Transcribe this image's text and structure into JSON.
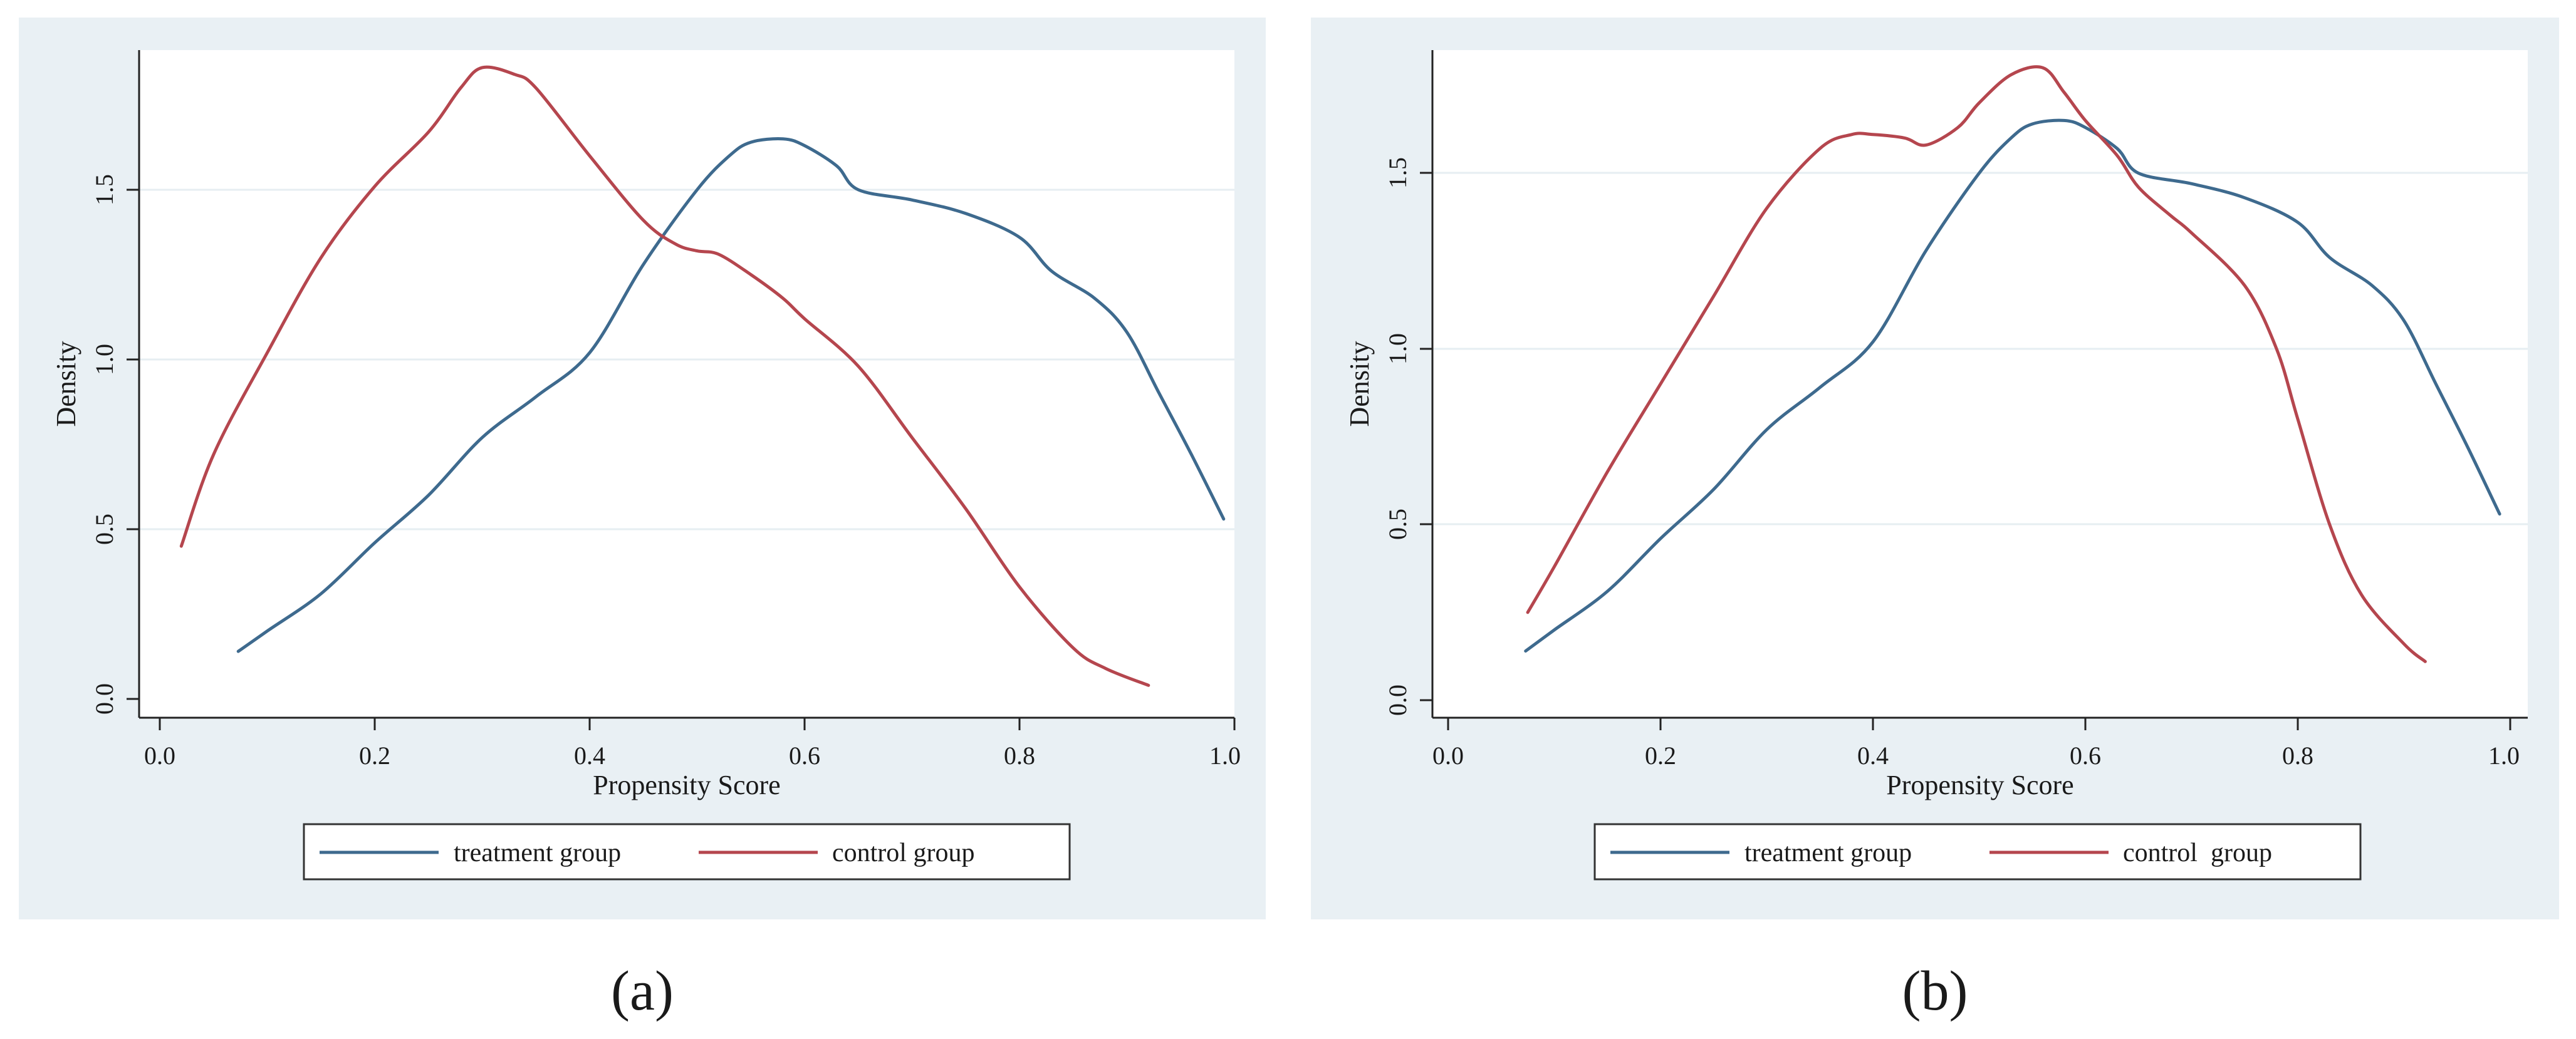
{
  "chart_data": [
    {
      "type": "line",
      "panel_label": "(a)",
      "xlabel": "Propensity Score",
      "ylabel": "Density",
      "xlim": [
        0,
        1
      ],
      "ylim": [
        0,
        1.85
      ],
      "x_ticks": [
        0,
        0.2,
        0.4,
        0.6,
        0.8,
        1
      ],
      "x_tick_labels": [
        "0.0",
        "0.2",
        "0.4",
        "0.6",
        "0.8",
        "1.0"
      ],
      "y_ticks": [
        0,
        0.5,
        1,
        1.5
      ],
      "y_tick_labels": [
        "0.0",
        "0.5",
        "1.0",
        "1.5"
      ],
      "grid": true,
      "legend_position": "bottom",
      "series": [
        {
          "name": "treatment group",
          "color": "#3e6a8e",
          "x": [
            0.073,
            0.1,
            0.15,
            0.2,
            0.25,
            0.3,
            0.35,
            0.4,
            0.45,
            0.5,
            0.53,
            0.55,
            0.58,
            0.6,
            0.63,
            0.65,
            0.7,
            0.75,
            0.8,
            0.83,
            0.87,
            0.9,
            0.93,
            0.96,
            0.99
          ],
          "values": [
            0.14,
            0.2,
            0.31,
            0.46,
            0.6,
            0.77,
            0.89,
            1.02,
            1.28,
            1.5,
            1.6,
            1.64,
            1.65,
            1.63,
            1.57,
            1.5,
            1.47,
            1.43,
            1.36,
            1.26,
            1.18,
            1.08,
            0.9,
            0.72,
            0.53
          ]
        },
        {
          "name": "control group",
          "color": "#b5464e",
          "x": [
            0.02,
            0.05,
            0.1,
            0.15,
            0.2,
            0.25,
            0.28,
            0.3,
            0.33,
            0.35,
            0.4,
            0.45,
            0.48,
            0.5,
            0.52,
            0.55,
            0.58,
            0.6,
            0.65,
            0.7,
            0.75,
            0.8,
            0.85,
            0.88,
            0.92
          ],
          "values": [
            0.45,
            0.72,
            1.02,
            1.3,
            1.51,
            1.67,
            1.8,
            1.86,
            1.84,
            1.8,
            1.6,
            1.41,
            1.34,
            1.32,
            1.31,
            1.25,
            1.18,
            1.12,
            0.98,
            0.77,
            0.56,
            0.33,
            0.15,
            0.09,
            0.04
          ]
        }
      ]
    },
    {
      "type": "line",
      "panel_label": "(b)",
      "xlabel": "Propensity Score",
      "ylabel": "Density",
      "xlim": [
        0,
        1
      ],
      "ylim": [
        0,
        1.85
      ],
      "x_ticks": [
        0,
        0.2,
        0.4,
        0.6,
        0.8,
        1
      ],
      "x_tick_labels": [
        "0.0",
        "0.2",
        "0.4",
        "0.6",
        "0.8",
        "1.0"
      ],
      "y_ticks": [
        0,
        0.5,
        1,
        1.5
      ],
      "y_tick_labels": [
        "0.0",
        "0.5",
        "1.0",
        "1.5"
      ],
      "grid": true,
      "legend_position": "bottom",
      "series": [
        {
          "name": "treatment group",
          "color": "#3e6a8e",
          "x": [
            0.073,
            0.1,
            0.15,
            0.2,
            0.25,
            0.3,
            0.35,
            0.4,
            0.45,
            0.5,
            0.53,
            0.55,
            0.58,
            0.6,
            0.63,
            0.65,
            0.7,
            0.75,
            0.8,
            0.83,
            0.87,
            0.9,
            0.93,
            0.96,
            0.99
          ],
          "values": [
            0.14,
            0.2,
            0.31,
            0.46,
            0.6,
            0.77,
            0.89,
            1.02,
            1.28,
            1.5,
            1.6,
            1.64,
            1.65,
            1.63,
            1.57,
            1.5,
            1.47,
            1.43,
            1.36,
            1.26,
            1.18,
            1.08,
            0.9,
            0.72,
            0.53
          ]
        },
        {
          "name": "control  group",
          "color": "#b5464e",
          "x": [
            0.075,
            0.1,
            0.15,
            0.2,
            0.25,
            0.3,
            0.35,
            0.38,
            0.4,
            0.43,
            0.45,
            0.48,
            0.5,
            0.53,
            0.56,
            0.58,
            0.6,
            0.63,
            0.65,
            0.68,
            0.7,
            0.75,
            0.78,
            0.8,
            0.83,
            0.86,
            0.9,
            0.92
          ],
          "values": [
            0.25,
            0.38,
            0.65,
            0.9,
            1.15,
            1.4,
            1.57,
            1.61,
            1.61,
            1.6,
            1.58,
            1.63,
            1.7,
            1.78,
            1.8,
            1.73,
            1.65,
            1.55,
            1.46,
            1.38,
            1.33,
            1.18,
            1.0,
            0.8,
            0.5,
            0.3,
            0.16,
            0.11
          ]
        }
      ]
    }
  ]
}
